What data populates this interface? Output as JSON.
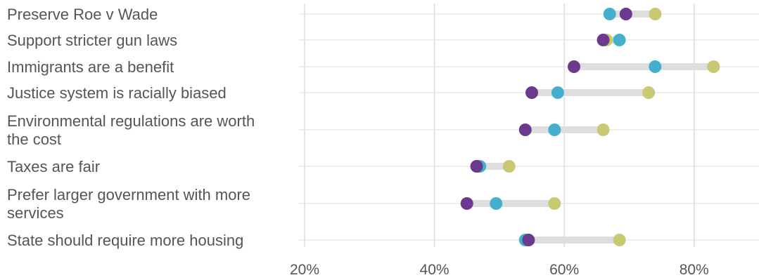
{
  "chart_data": {
    "type": "scatter",
    "style": "dot-plot",
    "title": "",
    "xlabel": "",
    "ylabel": "",
    "xlim": [
      20,
      90
    ],
    "x_ticks": [
      20,
      40,
      60,
      80
    ],
    "x_tick_labels": [
      "20%",
      "40%",
      "60%",
      "80%"
    ],
    "grid": true,
    "legend": "none",
    "colors": {
      "series_a": "#6b3a8f",
      "series_b": "#45b0cc",
      "series_c": "#c9c873",
      "range_bar": "#dedede",
      "grid": "#dddddd"
    },
    "categories": [
      [
        "Preserve Roe v Wade"
      ],
      [
        "Support stricter gun laws"
      ],
      [
        "Immigrants are a benefit"
      ],
      [
        "Justice system is racially biased"
      ],
      [
        "Environmental regulations are worth",
        "the cost"
      ],
      [
        "Taxes are fair"
      ],
      [
        "Prefer larger government with more",
        "services"
      ],
      [
        "State should require more housing"
      ]
    ],
    "series": [
      {
        "values": [
          69.5,
          66,
          61.5,
          55,
          54,
          46.5,
          45,
          54.5
        ]
      },
      {
        "values": [
          67,
          68.5,
          74,
          59,
          58.5,
          47,
          49.5,
          54
        ]
      },
      {
        "values": [
          74,
          66.5,
          83,
          73,
          66,
          51.5,
          58.5,
          68.5
        ]
      }
    ]
  }
}
